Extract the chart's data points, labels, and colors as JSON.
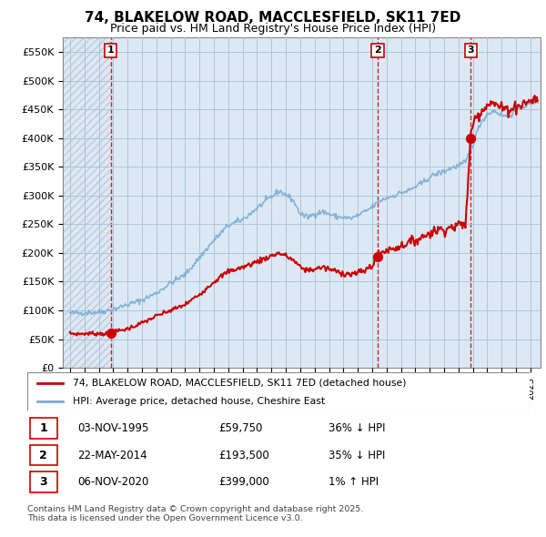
{
  "title": "74, BLAKELOW ROAD, MACCLESFIELD, SK11 7ED",
  "subtitle": "Price paid vs. HM Land Registry's House Price Index (HPI)",
  "red_label": "74, BLAKELOW ROAD, MACCLESFIELD, SK11 7ED (detached house)",
  "blue_label": "HPI: Average price, detached house, Cheshire East",
  "footer": "Contains HM Land Registry data © Crown copyright and database right 2025.\nThis data is licensed under the Open Government Licence v3.0.",
  "transactions": [
    {
      "num": 1,
      "date": "03-NOV-1995",
      "price": "£59,750",
      "hpi": "36% ↓ HPI",
      "year": 1995.84
    },
    {
      "num": 2,
      "date": "22-MAY-2014",
      "price": "£193,500",
      "hpi": "35% ↓ HPI",
      "year": 2014.38
    },
    {
      "num": 3,
      "date": "06-NOV-2020",
      "price": "£399,000",
      "hpi": "1% ↑ HPI",
      "year": 2020.84
    }
  ],
  "transaction_prices": [
    59750,
    193500,
    399000
  ],
  "transaction_years": [
    1995.84,
    2014.38,
    2020.84
  ],
  "ylim": [
    0,
    575000
  ],
  "yticks": [
    0,
    50000,
    100000,
    150000,
    200000,
    250000,
    300000,
    350000,
    400000,
    450000,
    500000,
    550000
  ],
  "ytick_labels": [
    "£0",
    "£50K",
    "£100K",
    "£150K",
    "£200K",
    "£250K",
    "£300K",
    "£350K",
    "£400K",
    "£450K",
    "£500K",
    "£550K"
  ],
  "xlim_start": 1992.5,
  "xlim_end": 2025.7,
  "chart_bg_color": "#dce9f5",
  "hatch_color": "#c0ccd8",
  "grid_color": "#aec4d8",
  "red_color": "#cc0000",
  "blue_color": "#7aadd4",
  "title_fontsize": 11,
  "subtitle_fontsize": 9
}
